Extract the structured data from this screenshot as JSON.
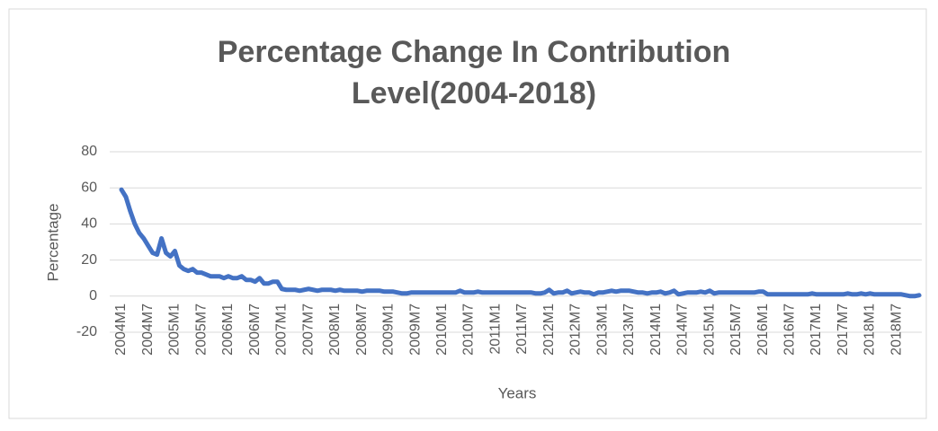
{
  "chart_data": {
    "type": "line",
    "title": [
      "Percentage Change In Contribution",
      "Level(2004-2018)"
    ],
    "x_label": "Years",
    "y_label": "Percentage",
    "categories": [
      "2004M1",
      null,
      null,
      null,
      null,
      null,
      "2004M7",
      null,
      null,
      null,
      null,
      null,
      "2005M1",
      null,
      null,
      null,
      null,
      null,
      "2005M7",
      null,
      null,
      null,
      null,
      null,
      "2006M1",
      null,
      null,
      null,
      null,
      null,
      "2006M7",
      null,
      null,
      null,
      null,
      null,
      "2007M1",
      null,
      null,
      null,
      null,
      null,
      "2007M7",
      null,
      null,
      null,
      null,
      null,
      "2008M1",
      null,
      null,
      null,
      null,
      null,
      "2008M7",
      null,
      null,
      null,
      null,
      null,
      "2009M1",
      null,
      null,
      null,
      null,
      null,
      "2009M7",
      null,
      null,
      null,
      null,
      null,
      "2010M1",
      null,
      null,
      null,
      null,
      null,
      "2010M7",
      null,
      null,
      null,
      null,
      null,
      "2011M1",
      null,
      null,
      null,
      null,
      null,
      "2011M7",
      null,
      null,
      null,
      null,
      null,
      "2012M1",
      null,
      null,
      null,
      null,
      null,
      "2012M7",
      null,
      null,
      null,
      null,
      null,
      "2013M1",
      null,
      null,
      null,
      null,
      null,
      "2013M7",
      null,
      null,
      null,
      null,
      null,
      "2014M1",
      null,
      null,
      null,
      null,
      null,
      "2014M7",
      null,
      null,
      null,
      null,
      null,
      "2015M1",
      null,
      null,
      null,
      null,
      null,
      "2015M7",
      null,
      null,
      null,
      null,
      null,
      "2016M1",
      null,
      null,
      null,
      null,
      null,
      "2016M7",
      null,
      null,
      null,
      null,
      null,
      "2017M1",
      null,
      null,
      null,
      null,
      null,
      "2017M7",
      null,
      null,
      null,
      null,
      null,
      "2018M1",
      null,
      null,
      null,
      null,
      null,
      "2018M7",
      null,
      null,
      null,
      null,
      null
    ],
    "values": [
      59,
      55,
      47,
      40,
      35,
      32,
      28,
      24,
      23,
      32,
      24,
      22,
      25,
      17,
      15,
      14,
      15,
      13,
      13,
      12,
      11,
      11,
      11,
      10,
      11,
      10,
      10,
      11,
      9,
      9,
      8,
      10,
      7,
      7,
      8,
      8,
      4,
      3.5,
      3.5,
      3.5,
      3,
      3.5,
      4,
      3.5,
      3,
      3.5,
      3.5,
      3.5,
      3,
      3.5,
      3,
      3,
      3,
      3,
      2.5,
      3,
      3,
      3,
      3,
      2.5,
      2.5,
      2.5,
      2,
      1.5,
      1.5,
      2,
      2,
      2,
      2,
      2,
      2,
      2,
      2,
      2,
      2,
      2,
      3,
      2,
      2,
      2,
      2.5,
      2,
      2,
      2,
      2,
      2,
      2,
      2,
      2,
      2,
      2,
      2,
      2,
      1.5,
      1.5,
      2,
      3.5,
      1.5,
      2,
      2,
      3,
      1.5,
      2,
      2.5,
      2,
      2,
      1,
      2,
      2,
      2.5,
      3,
      2.5,
      3,
      3,
      3,
      2.5,
      2,
      2,
      1.5,
      2,
      2,
      2.5,
      1.5,
      2,
      3,
      1,
      1.5,
      2,
      2,
      2,
      2.5,
      2,
      3,
      1.5,
      2,
      2,
      2,
      2,
      2,
      2,
      2,
      2,
      2,
      2.5,
      2.5,
      1,
      1,
      1,
      1,
      1,
      1,
      1,
      1,
      1,
      1,
      1.5,
      1,
      1,
      1,
      1,
      1,
      1,
      1,
      1.5,
      1,
      1,
      1.5,
      1,
      1.5,
      1,
      1,
      1,
      1,
      1,
      1,
      1,
      0.5,
      0,
      0,
      0.5
    ],
    "color": "#4472c4",
    "ylim": [
      -20,
      80
    ],
    "yticks": [
      -20,
      0,
      20,
      40,
      60,
      80
    ],
    "grid": true
  }
}
